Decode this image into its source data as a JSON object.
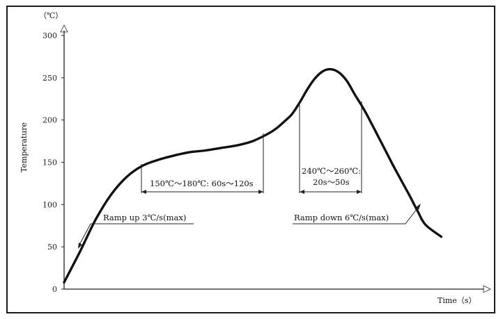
{
  "chart_data": {
    "type": "line",
    "title": "",
    "ylabel": "Temperature",
    "xlabel": "Time（s）",
    "y_unit": "（℃）",
    "ylim": [
      0,
      300
    ],
    "y_ticks": [
      "0",
      "50",
      "100",
      "150",
      "200",
      "250",
      "300"
    ],
    "grid": false,
    "series": [
      {
        "x": [
          0,
          20,
          40,
          60,
          80,
          100,
          120,
          140,
          160,
          180,
          200,
          220,
          240,
          260,
          270,
          280,
          290,
          300,
          310,
          320,
          330,
          340,
          350,
          360,
          370,
          380,
          390,
          400,
          410,
          420,
          430,
          440,
          450,
          460,
          480
        ],
        "values": [
          8,
          44,
          82,
          112,
          133,
          146,
          153,
          158,
          162,
          164,
          167,
          170,
          175,
          184,
          190,
          198,
          207,
          221,
          237,
          250,
          258,
          260,
          256,
          246,
          230,
          215,
          198,
          180,
          162,
          144,
          127,
          110,
          92,
          76,
          62
        ]
      }
    ],
    "annotations": {
      "ramp_up": "Ramp up 3℃/s(max)",
      "soak": "150℃～180℃: 60s～120s",
      "peak_line1": "240℃～260℃:",
      "peak_line2": "20s～50s",
      "ramp_down": "Ramp down 6℃/s(max)"
    }
  }
}
